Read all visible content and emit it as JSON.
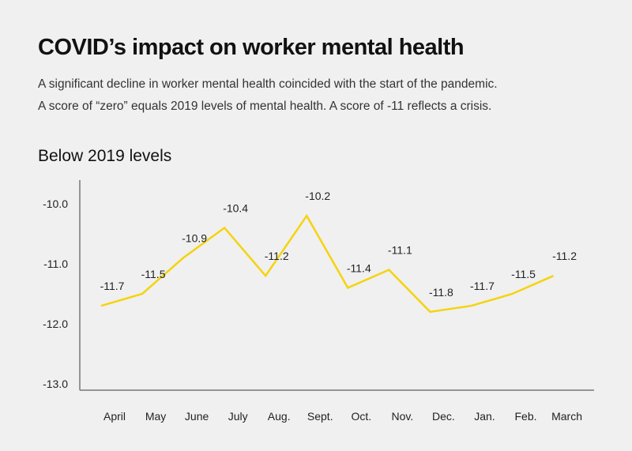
{
  "chart_data": {
    "type": "line",
    "title": "COVID’s impact on worker mental health",
    "subtitle": [
      "A significant decline in worker mental health coincided with the start of the pandemic.",
      "A score of  “zero” equals 2019 levels of mental health. A score of -11 reflects a crisis."
    ],
    "ylabel": "Below 2019 levels",
    "xlabel": "",
    "categories": [
      "April",
      "May",
      "June",
      "July",
      "Aug.",
      "Sept.",
      "Oct.",
      "Nov.",
      "Dec.",
      "Jan.",
      "Feb.",
      "March"
    ],
    "values": [
      -11.7,
      -11.5,
      -10.9,
      -10.4,
      -11.2,
      -10.2,
      -11.4,
      -11.1,
      -11.8,
      -11.7,
      -11.5,
      -11.2
    ],
    "data_labels": [
      "-11.7",
      "-11.5",
      "-10.9",
      "-10.4",
      "-11.2",
      "-10.2",
      "-11.4",
      "-11.1",
      "-11.8",
      "-11.7",
      "-11.5",
      "-11.2"
    ],
    "yticks": [
      "-10.0",
      "-11.0",
      "-12.0",
      "-13.0"
    ],
    "ytick_values": [
      -10,
      -11,
      -12,
      -13
    ],
    "ylim": [
      -13.1,
      -9.7
    ],
    "grid": false,
    "line_color": "#f5d30f",
    "axis_color": "#777777"
  }
}
